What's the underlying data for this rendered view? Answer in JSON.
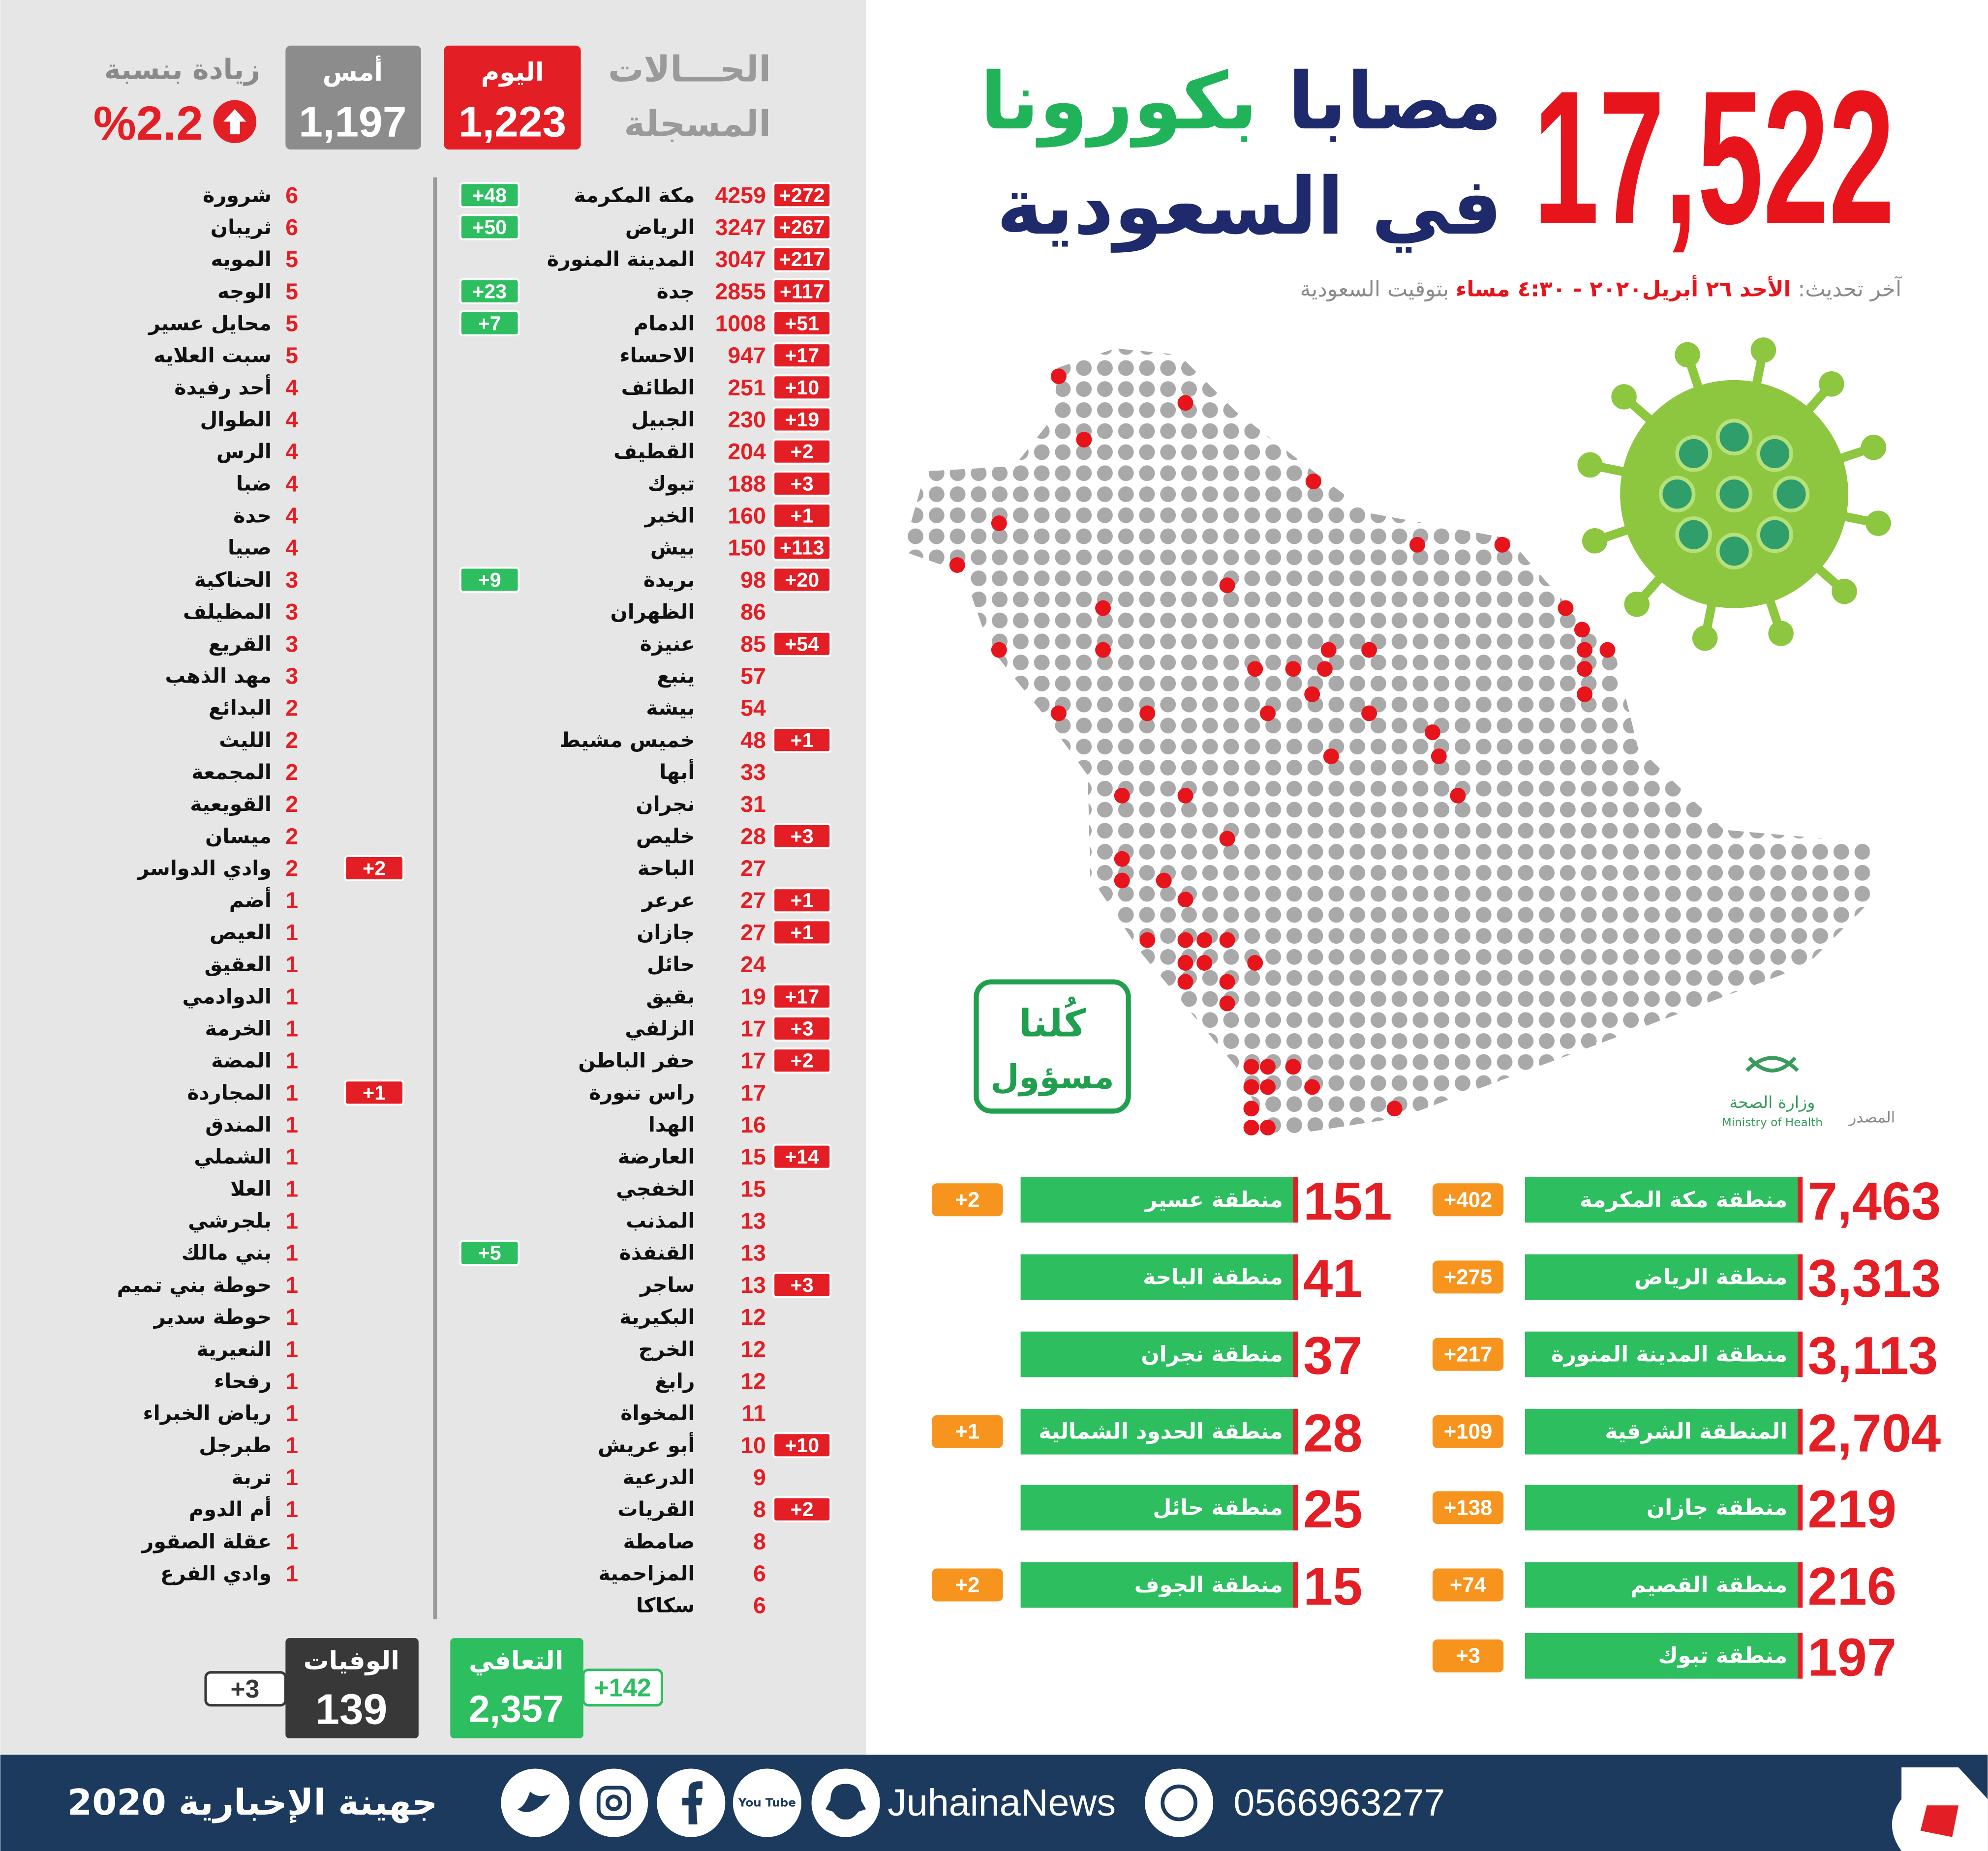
{
  "header": {
    "total": "17,522",
    "line1": "مصابا",
    "line1_accent": "بكورونا",
    "line2": "في السعودية",
    "update_label": "آخر تحديث:",
    "update_date": "الأحد ٢٦ أبريل٢٠٢٠ - ٤:٣٠ مساء",
    "update_suffix": "بتوقيت السعودية"
  },
  "summary": {
    "label_line1": "الحـــالات",
    "label_line2": "المسجلة",
    "today_label": "اليوم",
    "today_value": "1,223",
    "yesterday_label": "أمس",
    "yesterday_value": "1,197",
    "increase_label": "زيادة بنسبة",
    "increase_value": "%2.2"
  },
  "cities": [
    {
      "name": "مكة المكرمة",
      "count": 4259,
      "new": "+272",
      "recovered": "+48"
    },
    {
      "name": "الرياض",
      "count": 3247,
      "new": "+267",
      "recovered": "+50"
    },
    {
      "name": "المدينة المنورة",
      "count": 3047,
      "new": "+217"
    },
    {
      "name": "جدة",
      "count": 2855,
      "new": "+117",
      "recovered": "+23"
    },
    {
      "name": "الدمام",
      "count": 1008,
      "new": "+51",
      "recovered": "+7"
    },
    {
      "name": "الاحساء",
      "count": 947,
      "new": "+17"
    },
    {
      "name": "الطائف",
      "count": 251,
      "new": "+10"
    },
    {
      "name": "الجبيل",
      "count": 230,
      "new": "+19"
    },
    {
      "name": "القطيف",
      "count": 204,
      "new": "+2"
    },
    {
      "name": "تبوك",
      "count": 188,
      "new": "+3"
    },
    {
      "name": "الخبر",
      "count": 160,
      "new": "+1"
    },
    {
      "name": "بيش",
      "count": 150,
      "new": "+113"
    },
    {
      "name": "بريدة",
      "count": 98,
      "new": "+20",
      "recovered": "+9"
    },
    {
      "name": "الظهران",
      "count": 86
    },
    {
      "name": "عنيزة",
      "count": 85,
      "new": "+54"
    },
    {
      "name": "ينبع",
      "count": 57
    },
    {
      "name": "بيشة",
      "count": 54
    },
    {
      "name": "خميس مشيط",
      "count": 48,
      "new": "+1"
    },
    {
      "name": "أبها",
      "count": 33
    },
    {
      "name": "نجران",
      "count": 31
    },
    {
      "name": "خليص",
      "count": 28,
      "new": "+3"
    },
    {
      "name": "الباحة",
      "count": 27
    },
    {
      "name": "عرعر",
      "count": 27,
      "new": "+1"
    },
    {
      "name": "جازان",
      "count": 27,
      "new": "+1"
    },
    {
      "name": "حائل",
      "count": 24
    },
    {
      "name": "بقيق",
      "count": 19,
      "new": "+17"
    },
    {
      "name": "الزلفي",
      "count": 17,
      "new": "+3"
    },
    {
      "name": "حفر الباطن",
      "count": 17,
      "new": "+2"
    },
    {
      "name": "راس تنورة",
      "count": 17
    },
    {
      "name": "الهدا",
      "count": 16
    },
    {
      "name": "العارضة",
      "count": 15,
      "new": "+14"
    },
    {
      "name": "الخفجي",
      "count": 15
    },
    {
      "name": "المذنب",
      "count": 13
    },
    {
      "name": "القنفذة",
      "count": 13,
      "recovered": "+5"
    },
    {
      "name": "ساجر",
      "count": 13,
      "new": "+3"
    },
    {
      "name": "البكيرية",
      "count": 12
    },
    {
      "name": "الخرج",
      "count": 12
    },
    {
      "name": "رابغ",
      "count": 12
    },
    {
      "name": "المخواة",
      "count": 11
    },
    {
      "name": "أبو عريش",
      "count": 10,
      "new": "+10"
    },
    {
      "name": "الدرعية",
      "count": 9
    },
    {
      "name": "القريات",
      "count": 8,
      "new": "+2"
    },
    {
      "name": "صامطة",
      "count": 8
    },
    {
      "name": "المزاحمية",
      "count": 6
    },
    {
      "name": "سكاكا",
      "count": 6
    }
  ],
  "small_cities": [
    {
      "name": "شرورة",
      "count": 6
    },
    {
      "name": "ثريبان",
      "count": 6
    },
    {
      "name": "المويه",
      "count": 5
    },
    {
      "name": "الوجه",
      "count": 5
    },
    {
      "name": "محايل عسير",
      "count": 5
    },
    {
      "name": "سبت العلايه",
      "count": 5
    },
    {
      "name": "أحد رفيدة",
      "count": 4
    },
    {
      "name": "الطوال",
      "count": 4
    },
    {
      "name": "الرس",
      "count": 4
    },
    {
      "name": "ضبا",
      "count": 4
    },
    {
      "name": "حدة",
      "count": 4
    },
    {
      "name": "صبيا",
      "count": 4
    },
    {
      "name": "الحناكية",
      "count": 3
    },
    {
      "name": "المظيلف",
      "count": 3
    },
    {
      "name": "القريع",
      "count": 3
    },
    {
      "name": "مهد الذهب",
      "count": 3
    },
    {
      "name": "البدائع",
      "count": 2
    },
    {
      "name": "الليث",
      "count": 2
    },
    {
      "name": "المجمعة",
      "count": 2
    },
    {
      "name": "القويعية",
      "count": 2
    },
    {
      "name": "ميسان",
      "count": 2
    },
    {
      "name": "وادي الدواسر",
      "count": 2,
      "new": "+2"
    },
    {
      "name": "أضم",
      "count": 1
    },
    {
      "name": "العيص",
      "count": 1
    },
    {
      "name": "العقيق",
      "count": 1
    },
    {
      "name": "الدوادمي",
      "count": 1
    },
    {
      "name": "الخرمة",
      "count": 1
    },
    {
      "name": "المضة",
      "count": 1
    },
    {
      "name": "المجاردة",
      "count": 1,
      "new": "+1"
    },
    {
      "name": "المندق",
      "count": 1
    },
    {
      "name": "الشملي",
      "count": 1
    },
    {
      "name": "العلا",
      "count": 1
    },
    {
      "name": "بلجرشي",
      "count": 1
    },
    {
      "name": "بني مالك",
      "count": 1
    },
    {
      "name": "حوطة بني تميم",
      "count": 1
    },
    {
      "name": "حوطة سدير",
      "count": 1
    },
    {
      "name": "النعيرية",
      "count": 1
    },
    {
      "name": "رفحاء",
      "count": 1
    },
    {
      "name": "رياض الخبراء",
      "count": 1
    },
    {
      "name": "طبرجل",
      "count": 1
    },
    {
      "name": "تربة",
      "count": 1
    },
    {
      "name": "أم الدوم",
      "count": 1
    },
    {
      "name": "عقلة الصقور",
      "count": 1
    },
    {
      "name": "وادي الفرع",
      "count": 1
    }
  ],
  "totals": {
    "recovered_label": "التعافي",
    "recovered_value": "2,357",
    "recovered_new": "+142",
    "deaths_label": "الوفيات",
    "deaths_value": "139",
    "deaths_new": "+3"
  },
  "regions": [
    {
      "name": "منطقة مكة المكرمة",
      "value": "7,463",
      "new": "+402"
    },
    {
      "name": "منطقة الرياض",
      "value": "3,313",
      "new": "+275"
    },
    {
      "name": "منطقة المدينة المنورة",
      "value": "3,113",
      "new": "+217"
    },
    {
      "name": "المنطقة الشرقية",
      "value": "2,704",
      "new": "+109"
    },
    {
      "name": "منطقة جازان",
      "value": "219",
      "new": "+138"
    },
    {
      "name": "منطقة القصيم",
      "value": "216",
      "new": "+74"
    },
    {
      "name": "منطقة تبوك",
      "value": "197",
      "new": "+3"
    },
    {
      "name": "منطقة عسير",
      "value": "151",
      "new": "+2"
    },
    {
      "name": "منطقة الباحة",
      "value": "41"
    },
    {
      "name": "منطقة نجران",
      "value": "37"
    },
    {
      "name": "منطقة الحدود الشمالية",
      "value": "28",
      "new": "+1"
    },
    {
      "name": "منطقة حائل",
      "value": "25"
    },
    {
      "name": "منطقة الجوف",
      "value": "15",
      "new": "+2"
    }
  ],
  "logos": {
    "campaign_line1": "كُلنا",
    "campaign_line2": "مسؤول",
    "source_label": "المصدر",
    "ministry_ar": "وزارة الصحة",
    "ministry_en": "Ministry of Health"
  },
  "footer": {
    "brand": "جهينة الإخبارية 2020",
    "youtube_icon": "You Tube",
    "handle": "JuhainaNews",
    "phone": "0566963277"
  }
}
